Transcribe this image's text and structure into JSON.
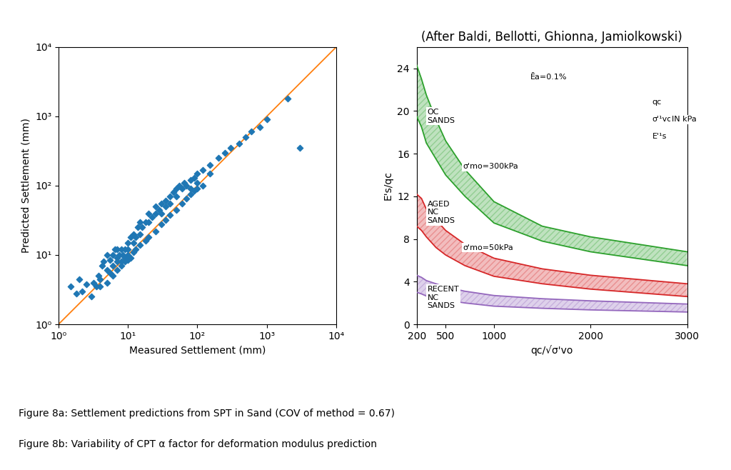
{
  "chart_data": [
    {
      "type": "scatter",
      "xlabel": "Measured Settlement (mm)",
      "ylabel": "Predicted Settlement (mm)",
      "caption": "Figure 8a: Settlement predictions from SPT in Sand (COV of method = 0.67)",
      "log": true,
      "grid": false,
      "xlim": [
        1,
        10000
      ],
      "ylim": [
        1,
        10000
      ],
      "xticks": [
        {
          "value": 1,
          "label": "10⁰"
        },
        {
          "value": 10,
          "label": "10¹"
        },
        {
          "value": 100,
          "label": "10²"
        },
        {
          "value": 1000,
          "label": "10³"
        },
        {
          "value": 10000,
          "label": "10⁴"
        }
      ],
      "yticks": [
        {
          "value": 1,
          "label": "10⁰"
        },
        {
          "value": 10,
          "label": "10¹"
        },
        {
          "value": 100,
          "label": "10²"
        },
        {
          "value": 1000,
          "label": "10³"
        },
        {
          "value": 10000,
          "label": "10⁴"
        }
      ],
      "series": [
        {
          "type": "scatter",
          "marker": "diamond",
          "x": [
            1.5,
            1.8,
            2.0,
            2.2,
            2.5,
            3.0,
            3.2,
            3.5,
            3.8,
            4.0,
            4.2,
            4.5,
            5.0,
            5.5,
            5.0,
            5.5,
            6.0,
            6.0,
            6.5,
            7.0,
            7.0,
            7.5,
            7.0,
            8.0,
            8.0,
            8.5,
            9.0,
            9.0,
            10.0,
            10.0,
            10.0,
            11.0,
            12.0,
            12.0,
            13.0,
            14.0,
            15.0,
            15.0,
            16.0,
            18.0,
            20.0,
            20.0,
            22.0,
            25.0,
            25.0,
            28.0,
            30.0,
            30.0,
            35.0,
            35.0,
            40.0,
            40.0,
            45.0,
            50.0,
            50.0,
            55.0,
            60.0,
            65.0,
            70.0,
            80.0,
            80.0,
            90.0,
            100.0,
            100.0,
            120.0,
            150.0,
            150.0,
            200.0,
            250.0,
            300.0,
            400.0,
            500.0,
            600.0,
            800.0,
            1000.0,
            2000.0,
            3000.0,
            4.0,
            5.0,
            6.0,
            7.0,
            8.0,
            9.0,
            10.0,
            11.0,
            12.0,
            13.0,
            15.0,
            18.0,
            20.0,
            25.0,
            30.0,
            35.0,
            40.0,
            50.0,
            60.0,
            70.0,
            80.0,
            90.0,
            100.0,
            120.0
          ],
          "values": [
            3.5,
            2.8,
            4.5,
            3.0,
            3.8,
            2.5,
            4.0,
            3.5,
            5.0,
            4.5,
            7.0,
            8.0,
            6.0,
            5.5,
            10.0,
            8.5,
            10.0,
            7.0,
            12.0,
            9.0,
            8.0,
            10.0,
            12.0,
            12.0,
            8.0,
            10.0,
            12.0,
            9.0,
            15.0,
            12.0,
            10.0,
            18.0,
            20.0,
            15.0,
            18.0,
            25.0,
            30.0,
            20.0,
            25.0,
            30.0,
            40.0,
            30.0,
            35.0,
            40.0,
            50.0,
            45.0,
            55.0,
            40.0,
            60.0,
            50.0,
            70.0,
            55.0,
            80.0,
            90.0,
            70.0,
            100.0,
            90.0,
            110.0,
            100.0,
            120.0,
            90.0,
            130.0,
            150.0,
            110.0,
            170.0,
            200.0,
            150.0,
            250.0,
            300.0,
            350.0,
            400.0,
            500.0,
            600.0,
            700.0,
            900.0,
            1800.0,
            350.0,
            3.5,
            4.0,
            5.0,
            6.0,
            7.0,
            8.0,
            8.5,
            9.0,
            11.0,
            12.0,
            14.0,
            16.0,
            18.0,
            22.0,
            28.0,
            32.0,
            38.0,
            45.0,
            55.0,
            65.0,
            75.0,
            85.0,
            90.0,
            100.0
          ]
        },
        {
          "type": "line",
          "x": [
            1,
            10000
          ],
          "values": [
            1,
            10000
          ]
        }
      ]
    },
    {
      "type": "band",
      "title": "(After Baldi, Bellotti, Ghionna, Jamiolkowski)",
      "xlabel": "qc/√σ'vo",
      "ylabel": "E's/qc",
      "caption": "Figure 8b: Variability of CPT α factor for deformation modulus prediction",
      "grid": false,
      "xlim": [
        200,
        3000
      ],
      "ylim": [
        0,
        26
      ],
      "xticks": [
        200,
        500,
        1000,
        2000,
        3000
      ],
      "yticks": [
        0,
        4,
        8,
        12,
        16,
        20,
        24
      ],
      "series": [
        {
          "x": [
            200,
            250,
            300,
            400,
            500,
            700,
            1000,
            1500,
            2000,
            3000
          ],
          "upper": [
            24.3,
            23.0,
            21.5,
            19.2,
            17.2,
            14.5,
            11.5,
            9.2,
            8.2,
            6.8
          ],
          "lower": [
            19.5,
            18.5,
            17.0,
            15.5,
            14.0,
            12.0,
            9.5,
            7.8,
            6.8,
            5.5
          ]
        },
        {
          "x": [
            200,
            250,
            300,
            400,
            500,
            700,
            1000,
            1500,
            2000,
            3000
          ],
          "upper": [
            12.2,
            11.8,
            10.8,
            9.8,
            8.8,
            7.5,
            6.2,
            5.2,
            4.6,
            3.8
          ],
          "lower": [
            9.2,
            8.8,
            8.2,
            7.2,
            6.5,
            5.5,
            4.5,
            3.8,
            3.3,
            2.6
          ]
        },
        {
          "x": [
            200,
            250,
            300,
            400,
            500,
            700,
            1000,
            1500,
            2000,
            3000
          ],
          "upper": [
            4.6,
            4.4,
            4.1,
            3.8,
            3.5,
            3.1,
            2.7,
            2.4,
            2.2,
            1.9
          ],
          "lower": [
            3.0,
            2.85,
            2.65,
            2.45,
            2.28,
            2.0,
            1.7,
            1.5,
            1.35,
            1.15
          ]
        }
      ],
      "annotations": [
        {
          "text": "OC\nSANDS",
          "x": 310,
          "y": 19.5
        },
        {
          "text": "AGED\nNC\nSANDS",
          "x": 310,
          "y": 10.5
        },
        {
          "text": "RECENT\nNC\nSANDS",
          "x": 310,
          "y": 2.5
        },
        {
          "text": "σ'mo=300kPa",
          "x": 680,
          "y": 14.8
        },
        {
          "text": "σ'mo=50kPa",
          "x": 680,
          "y": 7.2
        },
        {
          "text": "Ēa=0.1%",
          "x": 1380,
          "y": 23.2
        },
        {
          "text": "qc",
          "x": 2640,
          "y": 20.8
        },
        {
          "text": "σ'¹vo",
          "x": 2640,
          "y": 19.2
        },
        {
          "text": "E'¹s",
          "x": 2640,
          "y": 17.6
        },
        {
          "text": "IN kPa",
          "x": 2840,
          "y": 19.2
        }
      ]
    }
  ]
}
